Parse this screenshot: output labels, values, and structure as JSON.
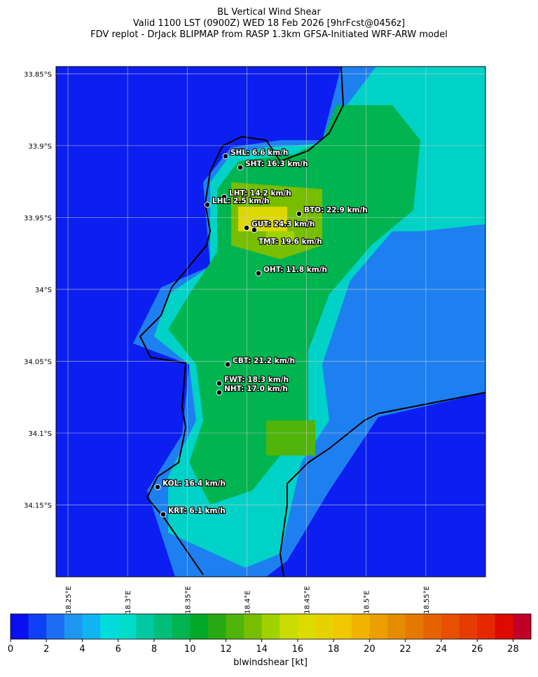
{
  "title": [
    "BL Vertical Wind Shear",
    "Valid 1100 LST (0900Z) WED 18 Feb 2026 [9hrFcst@0456z]",
    "FDV replot - DrJack BLIPMAP from RASP 1.3km GFSA-Initiated WRF-ARW model"
  ],
  "map": {
    "xlim": [
      18.24,
      18.6
    ],
    "ylim": [
      -34.2,
      -33.845
    ],
    "xticks": [
      {
        "value": 18.25,
        "label": "18.25°E"
      },
      {
        "value": 18.3,
        "label": "18.3°E"
      },
      {
        "value": 18.35,
        "label": "18.35°E"
      },
      {
        "value": 18.4,
        "label": "18.4°E"
      },
      {
        "value": 18.45,
        "label": "18.45°E"
      },
      {
        "value": 18.5,
        "label": "18.5°E"
      },
      {
        "value": 18.55,
        "label": "18.55°E"
      }
    ],
    "yticks": [
      {
        "value": -33.85,
        "label": "33.85°S"
      },
      {
        "value": -33.9,
        "label": "33.9°S"
      },
      {
        "value": -33.95,
        "label": "33.95°S"
      },
      {
        "value": -34,
        "label": "34°S"
      },
      {
        "value": -34.05,
        "label": "34.05°S"
      },
      {
        "value": -34.1,
        "label": "34.1°S"
      },
      {
        "value": -34.15,
        "label": "34.15°S"
      }
    ],
    "stations": [
      "SHL: 6.6 km/h",
      "SHT: 16.3 km/h",
      "LHT: 14.2 km/h",
      "LHL: 2.5 km/h",
      "BTO: 22.9 km/h",
      "GUT: 24.3 km/h",
      "TMT: 19.6 km/h",
      "OHT: 11.8 km/h",
      "CBT: 21.2 km/h",
      "FWT: 18.3 km/h",
      "NHT: 17.0 km/h",
      "KOL: 16.4 km/h",
      "KRT: 6.1 km/h"
    ]
  },
  "colorbar": {
    "label": "blwindshear [kt]",
    "lim": [
      0,
      29
    ],
    "ticks": [
      0,
      2,
      4,
      6,
      8,
      10,
      12,
      14,
      16,
      18,
      20,
      22,
      24,
      26,
      28
    ],
    "colors": [
      "#0a0ff0",
      "#1040f5",
      "#1e6ef5",
      "#1e96f0",
      "#10b4f0",
      "#00dcdc",
      "#00dcc8",
      "#00c8a0",
      "#00be78",
      "#00b450",
      "#00aa28",
      "#28aa14",
      "#50b40a",
      "#78be00",
      "#a0d200",
      "#c8dc00",
      "#dcdc00",
      "#e6d200",
      "#f0c800",
      "#f0b400",
      "#eb9f00",
      "#e68c00",
      "#e67800",
      "#e66400",
      "#e65000",
      "#e63c00",
      "#e62800",
      "#dc0a00",
      "#c00028"
    ]
  }
}
